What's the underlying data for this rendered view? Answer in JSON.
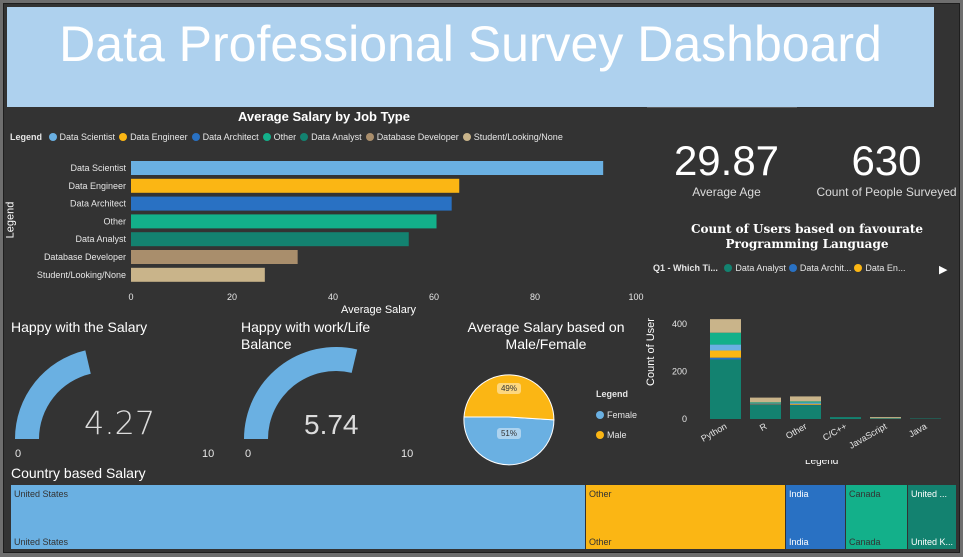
{
  "title": "Data Professional Survey Dashboard",
  "bar_chart": {
    "title": "Average Salary by Job Type",
    "legend_label": "Legend",
    "xlabel": "Average Salary",
    "ylabel": "Legend",
    "ticks": [
      "0",
      "20",
      "40",
      "60",
      "80",
      "100"
    ],
    "chart_data": {
      "type": "bar",
      "orientation": "horizontal",
      "title": "Average Salary by Job Type",
      "xlabel": "Average Salary",
      "ylabel": "Legend",
      "xlim": [
        0,
        100
      ],
      "categories": [
        "Data Scientist",
        "Data Engineer",
        "Data Architect",
        "Other",
        "Data Analyst",
        "Database Developer",
        "Student/Looking/None"
      ],
      "values": [
        93.5,
        65,
        63.5,
        60.5,
        55,
        33,
        26.5
      ],
      "colors": [
        "#6ab0e2",
        "#fbb614",
        "#2971c3",
        "#13b08a",
        "#138270",
        "#a98e6c",
        "#c9b48a"
      ]
    }
  },
  "cards": {
    "age_value": "29.87",
    "age_label": "Average Age",
    "count_value": "630",
    "count_label": "Count of People Surveyed"
  },
  "lang_chart": {
    "title_line1": "Count of Users based on favourate",
    "title_line2": "Programming Language",
    "legend_title": "Q1 - Which Ti...",
    "legend_items": [
      "Data Analyst",
      "Data Archit...",
      "Data En..."
    ],
    "ylabel": "Count of User",
    "yticks": [
      "0",
      "200",
      "400"
    ],
    "xlabel_partial": "Legend",
    "chart_data": {
      "type": "bar",
      "stacked": true,
      "categories": [
        "Python",
        "R",
        "Other",
        "C/C++",
        "JavaScript",
        "Java"
      ],
      "ylabel": "Count of User",
      "ylim": [
        0,
        450
      ],
      "series": [
        {
          "name": "Data Analyst",
          "color": "#138270",
          "values": [
            250,
            60,
            58,
            8,
            3,
            2
          ]
        },
        {
          "name": "Data Archit...",
          "color": "#2971c3",
          "values": [
            8,
            2,
            2,
            0,
            0,
            0
          ]
        },
        {
          "name": "Data En...",
          "color": "#fbb614",
          "values": [
            30,
            2,
            4,
            0,
            0,
            0
          ]
        },
        {
          "color": "#6ab0e2",
          "values": [
            25,
            2,
            5,
            0,
            0,
            0
          ]
        },
        {
          "color": "#13b08a",
          "values": [
            50,
            4,
            5,
            0,
            0,
            0
          ]
        },
        {
          "color": "#c9b48a",
          "values": [
            57,
            20,
            21,
            0,
            5,
            0
          ]
        }
      ]
    }
  },
  "gauge1": {
    "title": "Happy with the Salary",
    "value": 4.27,
    "display": "4.27",
    "min": "0",
    "max": "10",
    "color": "#6ab0e2"
  },
  "gauge2": {
    "title_line1": "Happy with work/Life",
    "title_line2": "Balance",
    "value": 5.74,
    "display": "5.74",
    "min": "0",
    "max": "10",
    "color": "#6ab0e2"
  },
  "pie": {
    "title_line1": "Average Salary based on",
    "title_line2": "Male/Female",
    "legend_title": "Legend",
    "legend_items": [
      {
        "label": "Female",
        "color": "#6ab0e2"
      },
      {
        "label": "Male",
        "color": "#fbb614"
      }
    ],
    "chart_data": {
      "type": "pie",
      "categories": [
        "Female",
        "Male"
      ],
      "values": [
        51,
        49
      ],
      "labels": [
        "51%",
        "49%"
      ],
      "colors": [
        "#6ab0e2",
        "#fbb614"
      ]
    }
  },
  "treemap": {
    "title": "Country based Salary",
    "cells": [
      {
        "label": "United States",
        "color": "#6ab0e2",
        "text_color": "#333"
      },
      {
        "label": "Other",
        "color": "#fbb614",
        "text_color": "#333"
      },
      {
        "label": "India",
        "color": "#2971c3",
        "text_color": "#fff"
      },
      {
        "label": "Canada",
        "color": "#13b08a",
        "text_color": "#333"
      },
      {
        "label": "United ...",
        "label_bottom": "United K...",
        "color": "#138270",
        "text_color": "#fff"
      }
    ]
  }
}
